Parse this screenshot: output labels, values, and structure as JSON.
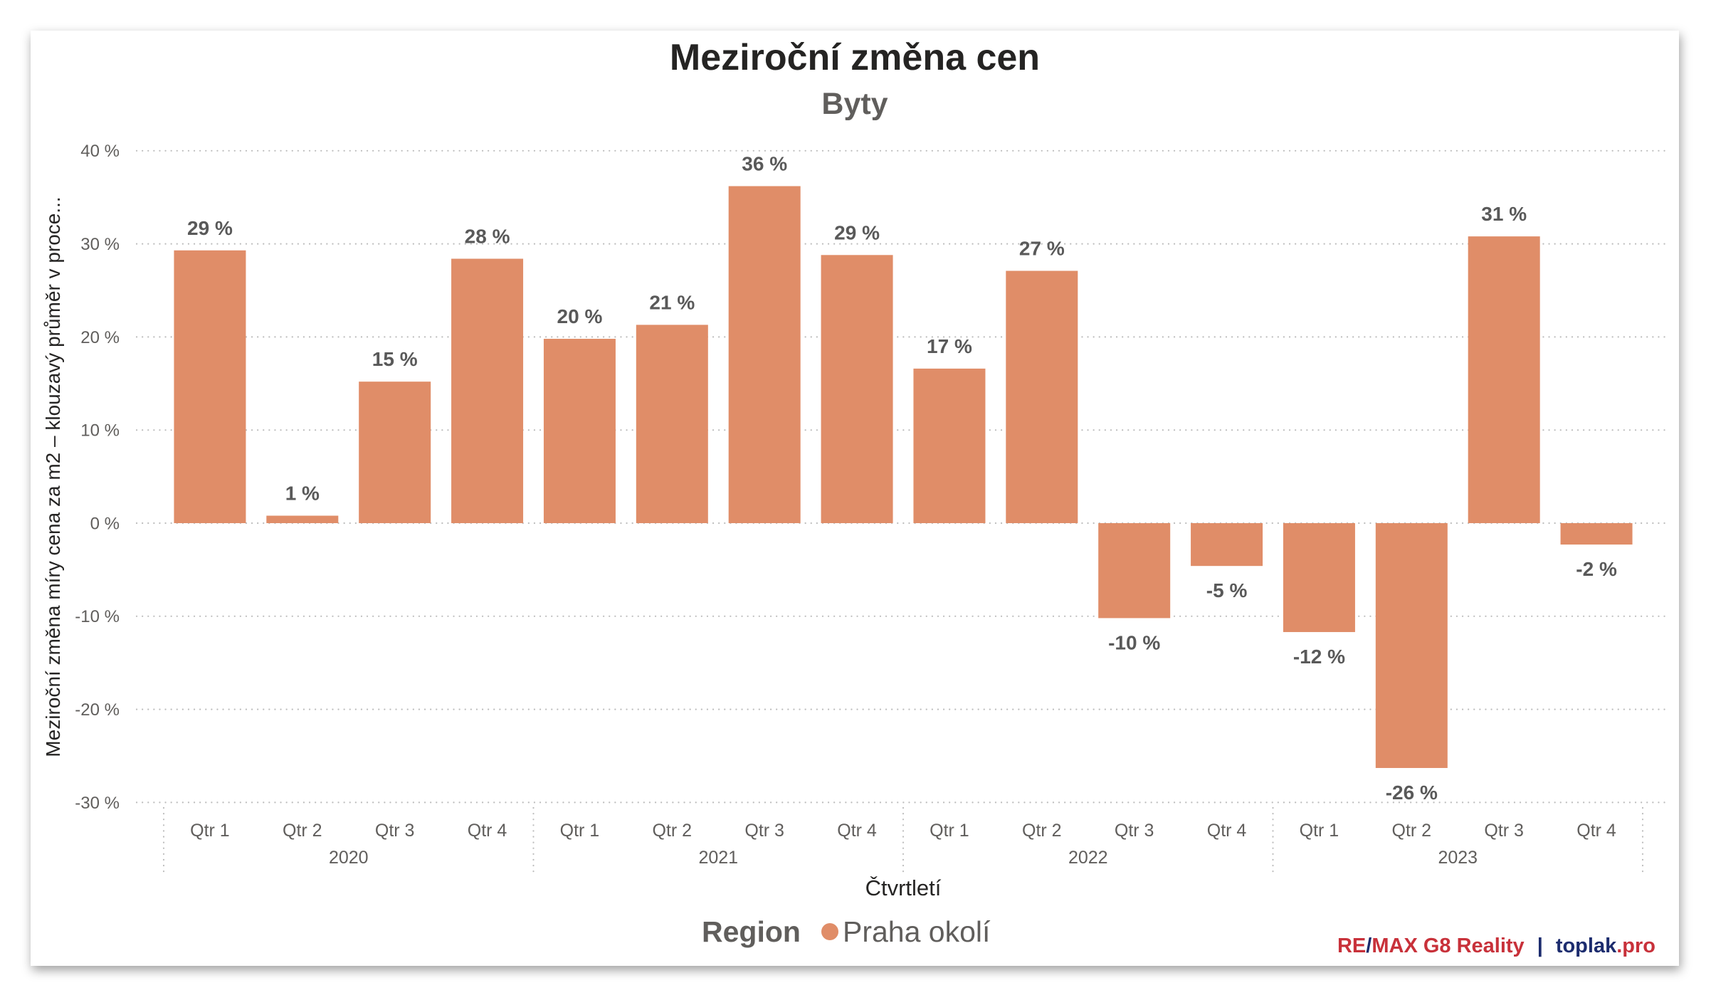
{
  "chart_data": {
    "type": "bar",
    "title": "Meziroční změna cen",
    "subtitle": "Byty",
    "ylabel": "Meziroční změna míry cena za m2 – klouzavý průměr v proce...",
    "xlabel": "Čtvrtletí",
    "ylim": [
      -30,
      40
    ],
    "grid": true,
    "yticks": [
      {
        "value": 40,
        "label": "40 %"
      },
      {
        "value": 30,
        "label": "30 %"
      },
      {
        "value": 20,
        "label": "20 %"
      },
      {
        "value": 10,
        "label": "10 %"
      },
      {
        "value": 0,
        "label": "0 %"
      },
      {
        "value": -10,
        "label": "-10 %"
      },
      {
        "value": -20,
        "label": "-20 %"
      },
      {
        "value": -30,
        "label": "-30 %"
      }
    ],
    "years": [
      {
        "label": "2020",
        "quarters": [
          "Qtr 1",
          "Qtr 2",
          "Qtr 3",
          "Qtr 4"
        ]
      },
      {
        "label": "2021",
        "quarters": [
          "Qtr 1",
          "Qtr 2",
          "Qtr 3",
          "Qtr 4"
        ]
      },
      {
        "label": "2022",
        "quarters": [
          "Qtr 1",
          "Qtr 2",
          "Qtr 3",
          "Qtr 4"
        ]
      },
      {
        "label": "2023",
        "quarters": [
          "Qtr 1",
          "Qtr 2",
          "Qtr 3",
          "Qtr 4"
        ]
      }
    ],
    "series": [
      {
        "name": "Praha okolí",
        "color": "#E08D68",
        "values": [
          29.3,
          0.8,
          15.2,
          28.4,
          19.8,
          21.3,
          36.2,
          28.8,
          16.6,
          27.1,
          -10.2,
          -4.6,
          -11.7,
          -26.3,
          30.8,
          -2.3
        ],
        "labels": [
          "29 %",
          "1 %",
          "15 %",
          "28 %",
          "20 %",
          "21 %",
          "36 %",
          "29 %",
          "17 %",
          "27 %",
          "-10 %",
          "-5 %",
          "-12 %",
          "-26 %",
          "31 %",
          "-2 %"
        ]
      }
    ],
    "legend": {
      "title": "Region",
      "position": "bottom-center"
    }
  },
  "brand": {
    "segments": [
      {
        "text": "RE",
        "color": "#C8313A"
      },
      {
        "text": "/",
        "color": "#1C2C6E"
      },
      {
        "text": "MAX G8 Reality",
        "color": "#C8313A"
      },
      {
        "text": "|",
        "color": "#1C2C6E"
      },
      {
        "text": "toplak",
        "color": "#1C2C6E"
      },
      {
        "text": ".pro",
        "color": "#C8313A"
      }
    ]
  }
}
